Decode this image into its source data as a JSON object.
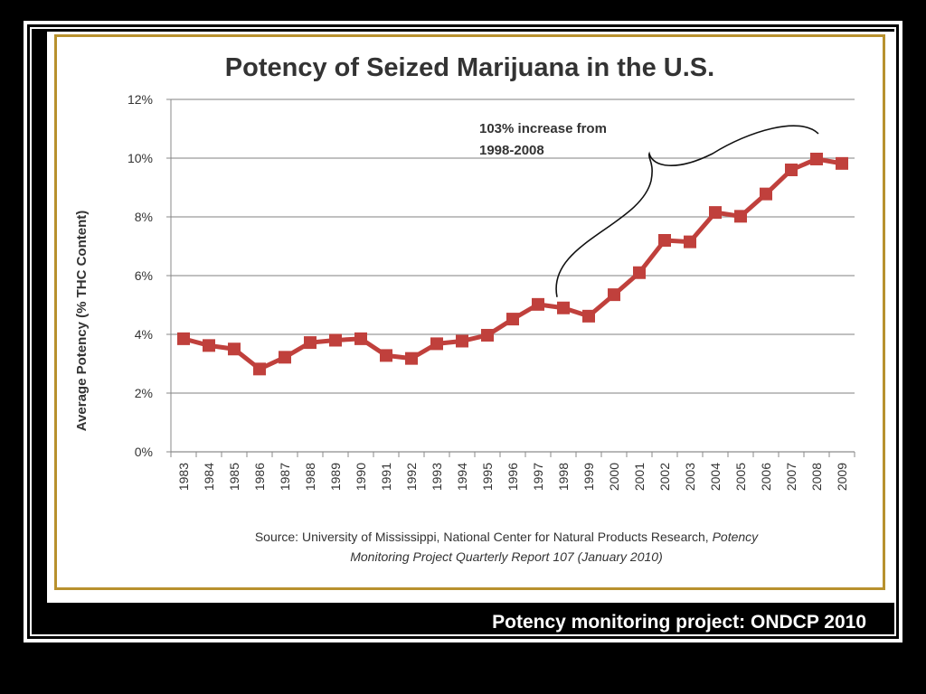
{
  "slide": {
    "footer_caption": "Potency monitoring project: ONDCP 2010"
  },
  "chart_data": {
    "type": "line",
    "title": "Potency of Seized Marijuana in the U.S.",
    "xlabel": "",
    "ylabel": "Average Potency (% THC Content)",
    "ylim": [
      0,
      12
    ],
    "y_ticks": [
      "0%",
      "2%",
      "4%",
      "6%",
      "8%",
      "10%",
      "12%"
    ],
    "grid": true,
    "categories": [
      "1983",
      "1984",
      "1985",
      "1986",
      "1987",
      "1988",
      "1989",
      "1990",
      "1991",
      "1992",
      "1993",
      "1994",
      "1995",
      "1996",
      "1997",
      "1998",
      "1999",
      "2000",
      "2001",
      "2002",
      "2003",
      "2004",
      "2005",
      "2006",
      "2007",
      "2008",
      "2009"
    ],
    "series": [
      {
        "name": "",
        "color": "#c0403c",
        "values": [
          3.85,
          3.62,
          3.5,
          2.82,
          3.22,
          3.72,
          3.8,
          3.85,
          3.28,
          3.18,
          3.68,
          3.77,
          3.97,
          4.52,
          5.02,
          4.9,
          4.62,
          5.35,
          6.1,
          7.2,
          7.15,
          8.15,
          8.02,
          8.78,
          9.6,
          9.97,
          9.82
        ]
      }
    ],
    "annotation": {
      "text_line1": "103% increase from",
      "text_line2": "1998-2008",
      "from": "1998",
      "to": "2008"
    },
    "source": {
      "prefix": "Source: University of Mississippi, National Center for Natural Products Research, ",
      "italic1": "Potency",
      "italic2": "Monitoring Project Quarterly Report 107 (January 2010)"
    }
  }
}
